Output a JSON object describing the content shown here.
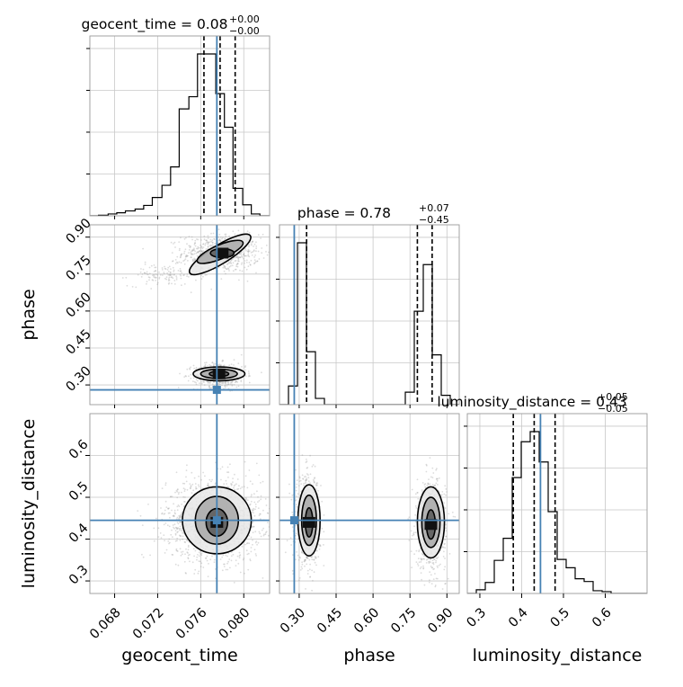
{
  "chart_data": {
    "type": "corner",
    "params": [
      "geocent_time",
      "phase",
      "luminosity_distance"
    ],
    "axis_labels": [
      "geocent_time",
      "phase",
      "luminosity_distance"
    ],
    "ranges": {
      "geocent_time": [
        0.0657,
        0.0824
      ],
      "phase": [
        0.22,
        0.95
      ],
      "luminosity_distance": [
        0.27,
        0.7
      ]
    },
    "ticks": {
      "geocent_time": [
        "0.068",
        "0.072",
        "0.076",
        "0.080"
      ],
      "phase": [
        "0.30",
        "0.45",
        "0.60",
        "0.75",
        "0.90"
      ],
      "luminosity_distance": [
        "0.3",
        "0.4",
        "0.5",
        "0.6"
      ]
    },
    "truths": {
      "geocent_time": 0.0775,
      "phase": 0.28,
      "luminosity_distance": 0.445
    },
    "titles": [
      {
        "param": "geocent_time",
        "prefix": "geocent_time = ",
        "median": "0.08",
        "plus": "+0.00",
        "minus": "−0.00"
      },
      {
        "param": "phase",
        "prefix": "phase = ",
        "median": "0.78",
        "plus": "+0.07",
        "minus": "−0.45"
      },
      {
        "param": "luminosity_distance",
        "prefix": "luminosity_distance = ",
        "median": "0.43",
        "plus": "+0.05",
        "minus": "−0.05"
      }
    ],
    "quantile_lines": {
      "geocent_time": [
        0.0763,
        0.0778,
        0.0792
      ],
      "phase": [
        0.33,
        0.78,
        0.84
      ],
      "luminosity_distance": [
        0.38,
        0.43,
        0.48
      ]
    },
    "histograms": {
      "geocent_time": {
        "edges": [
          0.0657,
          0.0665,
          0.0674,
          0.0682,
          0.069,
          0.0699,
          0.0707,
          0.0715,
          0.0724,
          0.0732,
          0.074,
          0.0749,
          0.0757,
          0.0765,
          0.0774,
          0.0782,
          0.079,
          0.0799,
          0.0807,
          0.0815,
          0.0824
        ],
        "counts": [
          0,
          1,
          3,
          5,
          8,
          11,
          17,
          30,
          50,
          80,
          175,
          195,
          265,
          265,
          200,
          145,
          45,
          18,
          3,
          0
        ]
      },
      "phase": {
        "edges": [
          0.22,
          0.2565,
          0.293,
          0.3295,
          0.366,
          0.4025,
          0.439,
          0.4755,
          0.512,
          0.5485,
          0.585,
          0.6215,
          0.658,
          0.6945,
          0.731,
          0.7675,
          0.804,
          0.8405,
          0.877,
          0.9135,
          0.95
        ],
        "counts": [
          0,
          30,
          260,
          85,
          10,
          0,
          0,
          0,
          0,
          0,
          0,
          0,
          0,
          0,
          20,
          150,
          225,
          80,
          15,
          0
        ]
      },
      "luminosity_distance": {
        "edges": [
          0.27,
          0.2915,
          0.313,
          0.3345,
          0.356,
          0.3775,
          0.399,
          0.4205,
          0.442,
          0.4635,
          0.485,
          0.5065,
          0.528,
          0.5495,
          0.571,
          0.5925,
          0.614,
          0.6355,
          0.657,
          0.6785,
          0.7
        ],
        "counts": [
          0,
          4,
          12,
          36,
          60,
          126,
          165,
          176,
          143,
          89,
          37,
          28,
          16,
          13,
          3,
          2,
          0,
          0,
          0,
          0
        ]
      }
    },
    "points": [
      {
        "x": "geocent_time",
        "y": "phase",
        "clusters": [
          {
            "mx": 0.0779,
            "my": 0.835,
            "sx": 0.0018,
            "sy": 0.038,
            "n": 700
          },
          {
            "mx": 0.0725,
            "my": 0.745,
            "sx": 0.0016,
            "sy": 0.022,
            "n": 120
          },
          {
            "mx": 0.0778,
            "my": 0.34,
            "sx": 0.0012,
            "sy": 0.024,
            "n": 560
          }
        ],
        "levels": [
          {
            "cx": 0.0778,
            "cy": 0.83,
            "rx": 0.0033,
            "ry": 0.038,
            "rot": -0.55
          },
          {
            "cx": 0.0778,
            "cy": 0.84,
            "rx": 0.0023,
            "ry": 0.028,
            "rot": -0.4
          },
          {
            "cx": 0.078,
            "cy": 0.835,
            "rx": 0.0011,
            "ry": 0.018,
            "rot": 0
          },
          {
            "cx": 0.0777,
            "cy": 0.345,
            "rx": 0.0024,
            "ry": 0.028,
            "rot": 0
          },
          {
            "cx": 0.0777,
            "cy": 0.345,
            "rx": 0.0017,
            "ry": 0.019,
            "rot": 0
          },
          {
            "cx": 0.0777,
            "cy": 0.345,
            "rx": 0.0009,
            "ry": 0.011,
            "rot": 0
          }
        ]
      },
      {
        "x": "geocent_time",
        "y": "luminosity_distance",
        "clusters": [
          {
            "mx": 0.0772,
            "my": 0.445,
            "sx": 0.0022,
            "sy": 0.048,
            "n": 1500
          }
        ],
        "levels": [
          {
            "cx": 0.0775,
            "cy": 0.445,
            "rx": 0.0032,
            "ry": 0.08,
            "rot": 0
          },
          {
            "cx": 0.0775,
            "cy": 0.445,
            "rx": 0.002,
            "ry": 0.057,
            "rot": 0
          },
          {
            "cx": 0.0775,
            "cy": 0.44,
            "rx": 0.001,
            "ry": 0.033,
            "rot": 0
          }
        ]
      },
      {
        "x": "phase",
        "y": "luminosity_distance",
        "clusters": [
          {
            "mx": 0.335,
            "my": 0.445,
            "sx": 0.025,
            "sy": 0.052,
            "n": 800
          },
          {
            "mx": 0.835,
            "my": 0.435,
            "sx": 0.03,
            "sy": 0.052,
            "n": 800
          }
        ],
        "levels": [
          {
            "cx": 0.34,
            "cy": 0.445,
            "rx": 0.045,
            "ry": 0.085,
            "rot": 0
          },
          {
            "cx": 0.34,
            "cy": 0.445,
            "rx": 0.03,
            "ry": 0.06,
            "rot": 0
          },
          {
            "cx": 0.34,
            "cy": 0.44,
            "rx": 0.015,
            "ry": 0.035,
            "rot": 0
          },
          {
            "cx": 0.835,
            "cy": 0.44,
            "rx": 0.055,
            "ry": 0.085,
            "rot": 0
          },
          {
            "cx": 0.835,
            "cy": 0.44,
            "rx": 0.037,
            "ry": 0.06,
            "rot": 0
          },
          {
            "cx": 0.835,
            "cy": 0.435,
            "rx": 0.018,
            "ry": 0.035,
            "rot": 0
          }
        ]
      }
    ],
    "grid": true,
    "colors": {
      "truth": "#4682b4",
      "hist": "#000000",
      "points": "#9a9a9a",
      "grid": "#c8c8c8",
      "contour": "#000000"
    }
  }
}
